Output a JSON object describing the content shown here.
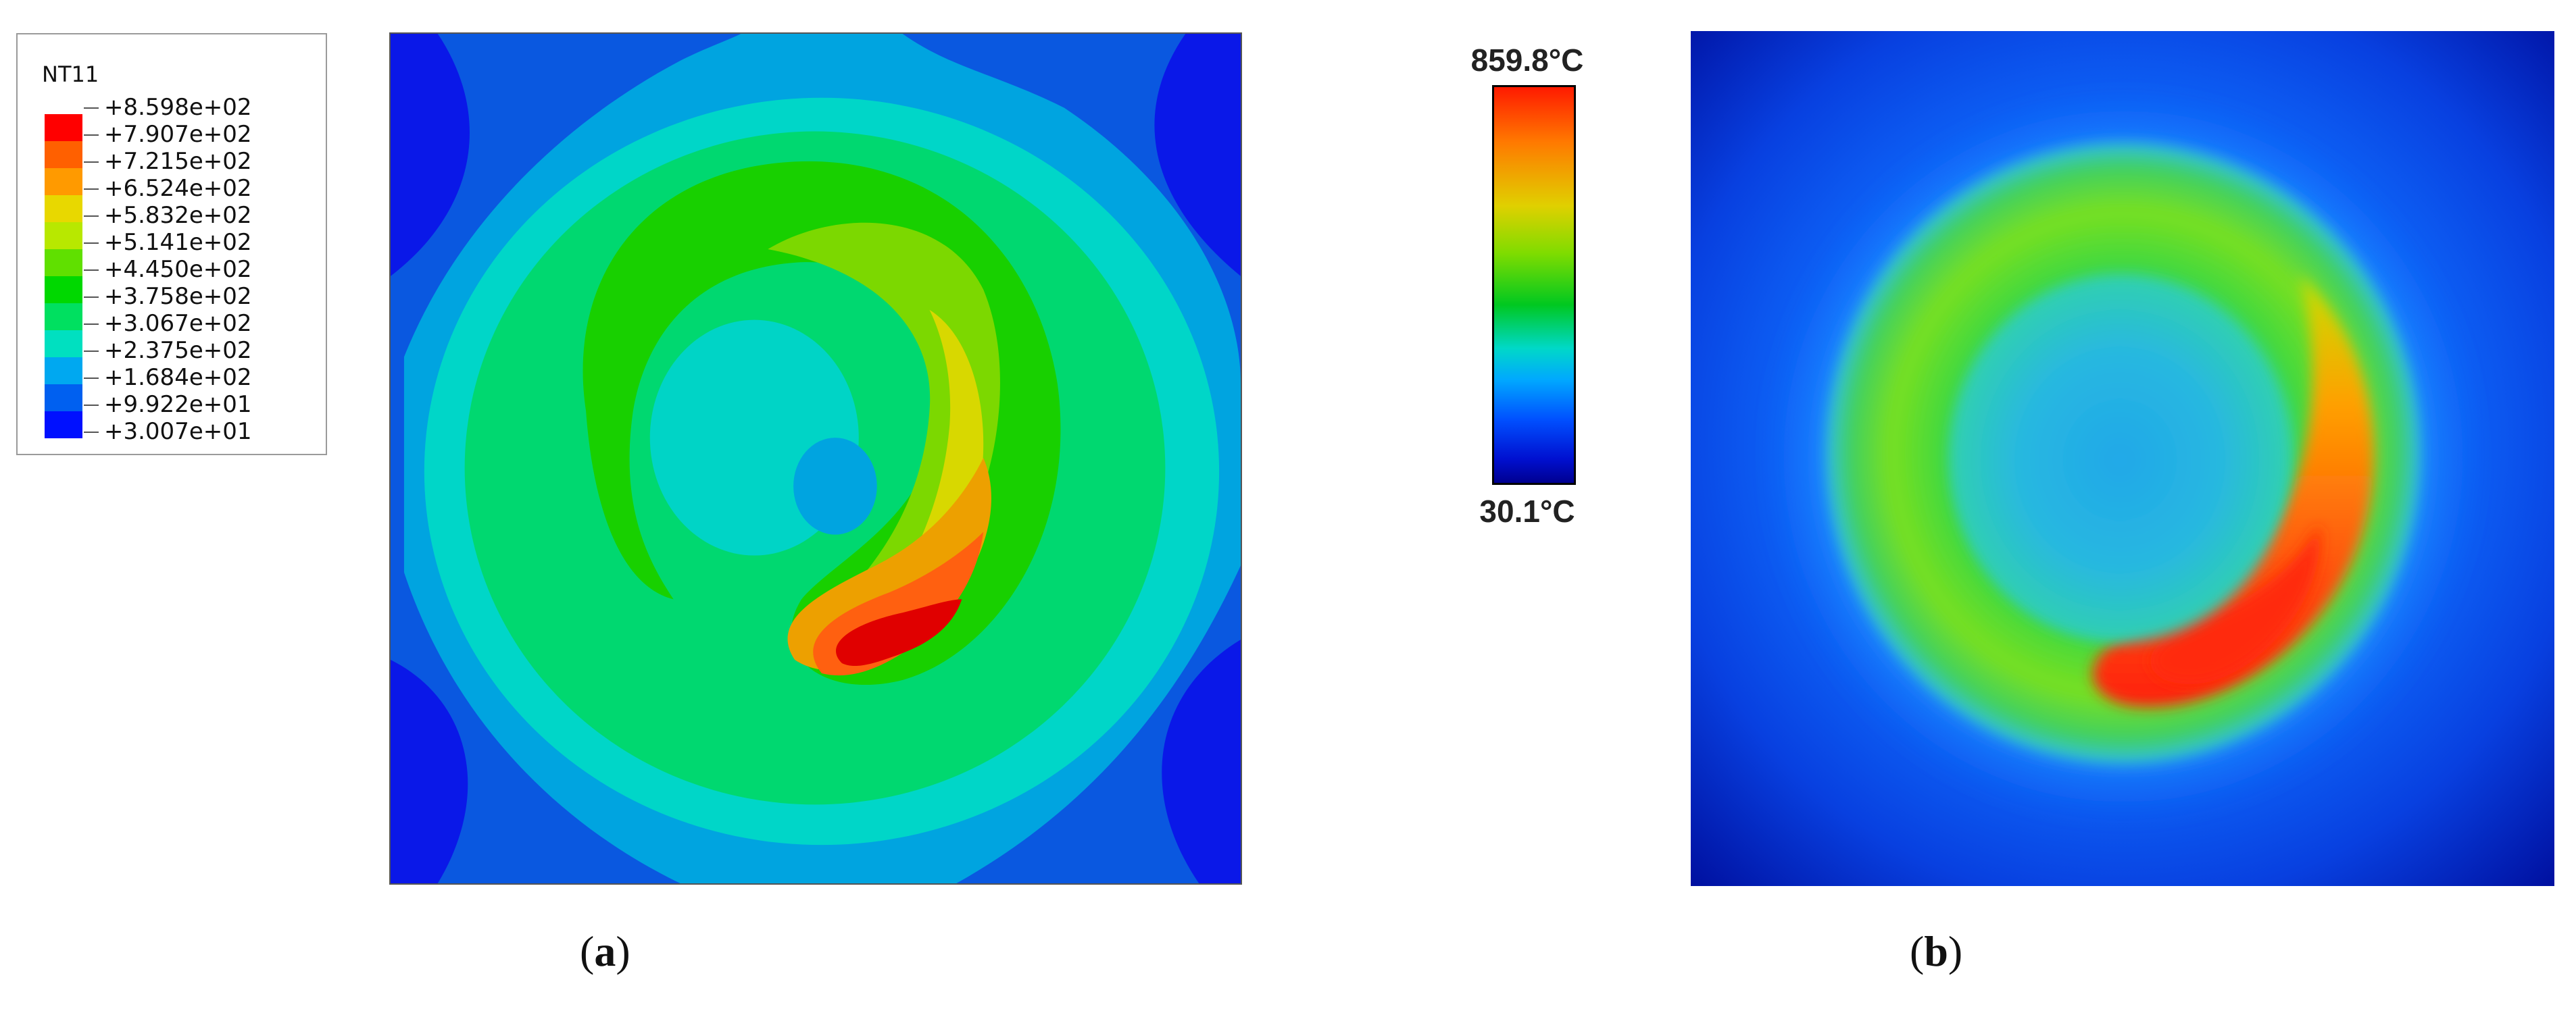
{
  "panel_a": {
    "legend": {
      "title": "NT11",
      "labels": [
        "+8.598e+02",
        "+7.907e+02",
        "+7.215e+02",
        "+6.524e+02",
        "+5.832e+02",
        "+5.141e+02",
        "+4.450e+02",
        "+3.758e+02",
        "+3.067e+02",
        "+2.375e+02",
        "+1.684e+02",
        "+9.922e+01",
        "+3.007e+01"
      ],
      "colors": [
        "#ff0000",
        "#ff6000",
        "#ff9a00",
        "#e8d800",
        "#b8e800",
        "#60e000",
        "#00d800",
        "#00e060",
        "#00e0c0",
        "#00a8f0",
        "#0060f0",
        "#0010ff"
      ]
    },
    "caption": {
      "open": "(",
      "letter": "a",
      "close": ")"
    }
  },
  "panel_b": {
    "colorbar": {
      "max": "859.8°C",
      "min": "30.1°C"
    },
    "caption": {
      "open": "(",
      "letter": "b",
      "close": ")"
    }
  }
}
